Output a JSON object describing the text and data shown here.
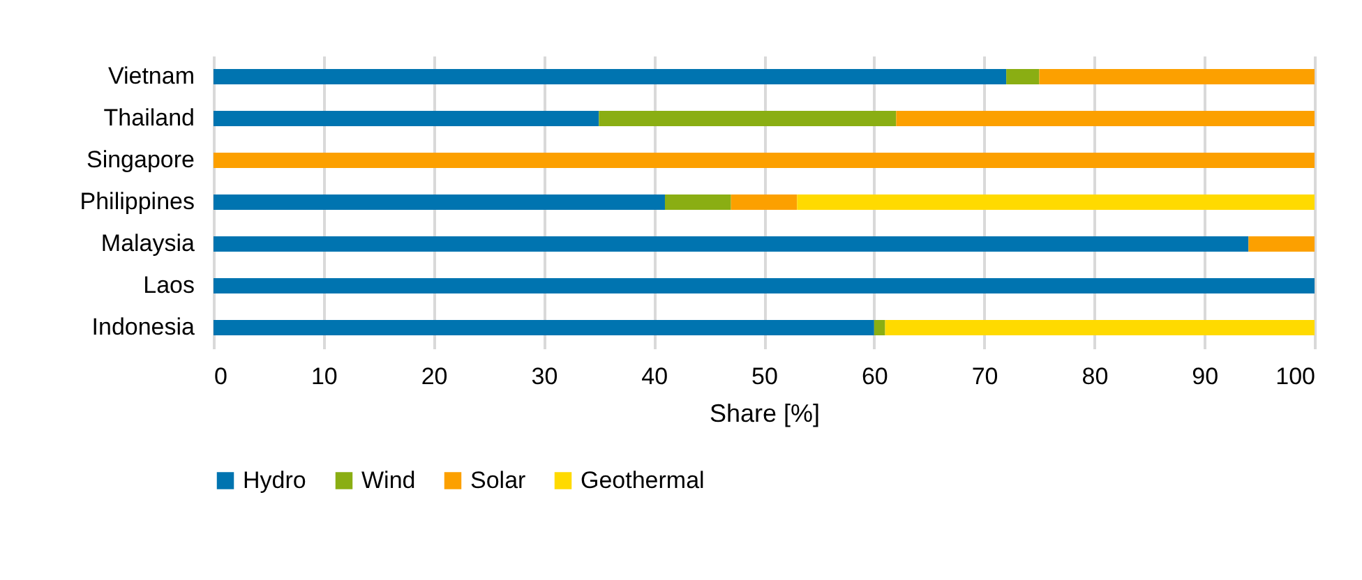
{
  "chart_data": {
    "type": "bar",
    "orientation": "horizontal",
    "stacked": true,
    "xlabel": "Share [%]",
    "categories": [
      "Vietnam",
      "Thailand",
      "Singapore",
      "Philippines",
      "Malaysia",
      "Laos",
      "Indonesia"
    ],
    "series": [
      {
        "name": "Hydro",
        "color": "#0074b0",
        "values": [
          72,
          35,
          null,
          41,
          94,
          100,
          60
        ]
      },
      {
        "name": "Wind",
        "color": "#8aae13",
        "values": [
          3,
          27,
          null,
          6,
          null,
          null,
          1
        ]
      },
      {
        "name": "Solar",
        "color": "#fca000",
        "values": [
          25,
          38,
          100,
          6,
          6,
          null,
          null
        ]
      },
      {
        "name": "Geothermal",
        "color": "#ffda00",
        "values": [
          null,
          null,
          null,
          47,
          null,
          null,
          39
        ]
      }
    ],
    "xlim": [
      0,
      100
    ],
    "xticks": [
      0,
      10,
      20,
      30,
      40,
      50,
      60,
      70,
      80,
      90,
      100
    ],
    "grid": "x",
    "legend": "bottom"
  }
}
